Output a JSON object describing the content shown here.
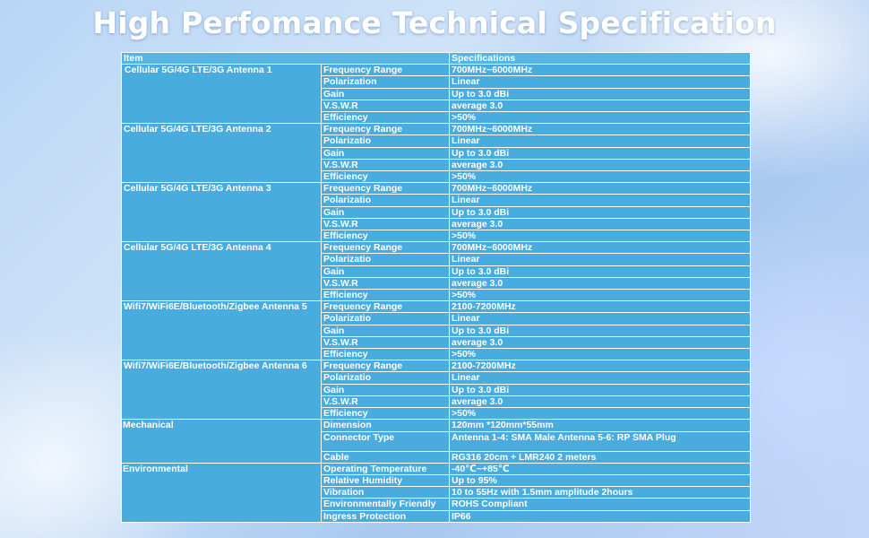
{
  "title": "High Perfomance Technical Specification",
  "header": {
    "item": "Item",
    "spec": "Specifications"
  },
  "groups": [
    {
      "name": "Cellular 5G/4G LTE/3G   Antenna 1",
      "rows": [
        {
          "param": "Frequency Range",
          "value": "700MHz~6000MHz"
        },
        {
          "param": "Polarization",
          "value": "Linear"
        },
        {
          "param": "Gain",
          "value": "Up to 3.0 dBi"
        },
        {
          "param": "V.S.W.R",
          "value": "average 3.0"
        },
        {
          "param": "Efficiency",
          "value": ">50%"
        }
      ]
    },
    {
      "name": "Cellular 5G/4G LTE/3G  Antenna 2",
      "rows": [
        {
          "param": "Frequency Range",
          "value": "700MHz~6000MHz"
        },
        {
          "param": "Polarizatio",
          "value": "Linear"
        },
        {
          "param": "Gain",
          "value": "Up to 3.0 dBi"
        },
        {
          "param": "V.S.W.R",
          "value": "average 3.0"
        },
        {
          "param": "Efficiency",
          "value": ">50%"
        }
      ]
    },
    {
      "name": "Cellular 5G/4G LTE/3G  Antenna 3",
      "rows": [
        {
          "param": "Frequency Range",
          "value": "700MHz~6000MHz"
        },
        {
          "param": "Polarizatio",
          "value": "Linear"
        },
        {
          "param": "Gain",
          "value": "Up to 3.0 dBi"
        },
        {
          "param": "V.S.W.R",
          "value": "average 3.0"
        },
        {
          "param": "Efficiency",
          "value": ">50%"
        }
      ]
    },
    {
      "name": "Cellular 5G/4G LTE/3G  Antenna 4",
      "rows": [
        {
          "param": "Frequency Range",
          "value": "700MHz~6000MHz"
        },
        {
          "param": "Polarizatio",
          "value": "Linear"
        },
        {
          "param": "Gain",
          "value": "Up to 3.0 dBi"
        },
        {
          "param": "V.S.W.R",
          "value": "average 3.0"
        },
        {
          "param": "Efficiency",
          "value": ">50%"
        }
      ]
    },
    {
      "name": "Wifi7/WiFi6E/Bluetooth/Zigbee Antenna 5",
      "rows": [
        {
          "param": "Frequency Range",
          "value": "2100-7200MHz"
        },
        {
          "param": "Polarizatio",
          "value": "Linear"
        },
        {
          "param": "Gain",
          "value": "Up to 3.0 dBi"
        },
        {
          "param": "V.S.W.R",
          "value": "average 3.0"
        },
        {
          "param": "Efficiency",
          "value": ">50%"
        }
      ]
    },
    {
      "name": "Wifi7/WiFi6E/Bluetooth/Zigbee  Antenna 6",
      "rows": [
        {
          "param": "Frequency Range",
          "value": "2100-7200MHz"
        },
        {
          "param": "Polarizatio",
          "value": "Linear"
        },
        {
          "param": "Gain",
          "value": "Up to 3.0 dBi"
        },
        {
          "param": "V.S.W.R",
          "value": "average 3.0"
        },
        {
          "param": "Efficiency",
          "value": ">50%"
        }
      ]
    }
  ],
  "mechanical": {
    "name": "Mechanical",
    "dimension": {
      "param": "Dimension",
      "value": "120mm *120mm*55mm"
    },
    "connector": {
      "param": "Connector Type",
      "value": "Antenna 1-4: SMA Male   Antenna 5-6: RP SMA Plug"
    },
    "cable": {
      "param": "Cable",
      "value": "RG316 20cm + LMR240 2 meters"
    }
  },
  "environmental": {
    "name": "Environmental",
    "rows": [
      {
        "param": "Operating Temperature",
        "value": "-40℃~+85℃"
      },
      {
        "param": "Relative Humidity",
        "value": "Up to 95%"
      },
      {
        "param": "Vibration",
        "value": "10 to 55Hz with 1.5mm amplitude 2hours"
      },
      {
        "param": "Environmentally Friendly",
        "value": "ROHS Compliant"
      },
      {
        "param": "Ingress Protection",
        "value": "IP66"
      }
    ]
  }
}
